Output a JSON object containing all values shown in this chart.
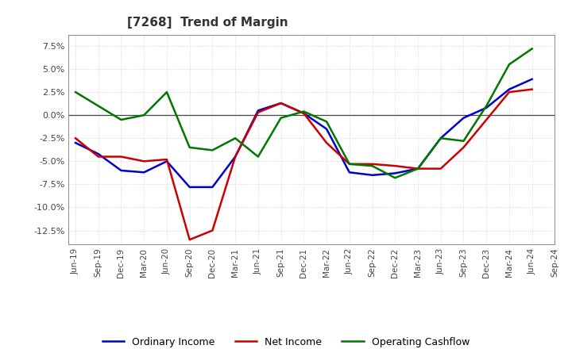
{
  "title": "[7268]  Trend of Margin",
  "x_labels": [
    "Jun-19",
    "Sep-19",
    "Dec-19",
    "Mar-20",
    "Jun-20",
    "Sep-20",
    "Dec-20",
    "Mar-21",
    "Jun-21",
    "Sep-21",
    "Dec-21",
    "Mar-22",
    "Jun-22",
    "Sep-22",
    "Dec-22",
    "Mar-23",
    "Jun-23",
    "Sep-23",
    "Dec-23",
    "Mar-24",
    "Jun-24",
    "Sep-24"
  ],
  "ordinary_income": [
    -3.0,
    -4.2,
    -6.0,
    -6.2,
    -5.0,
    -7.8,
    -7.8,
    -4.5,
    0.5,
    1.3,
    0.2,
    -1.5,
    -6.2,
    -6.5,
    -6.3,
    -5.8,
    -2.5,
    -0.3,
    0.8,
    2.8,
    3.9,
    null
  ],
  "net_income": [
    -2.5,
    -4.5,
    -4.5,
    -5.0,
    -4.8,
    -13.5,
    -12.5,
    -4.5,
    0.3,
    1.3,
    0.2,
    -3.0,
    -5.3,
    -5.3,
    -5.5,
    -5.8,
    -5.8,
    -3.5,
    -0.5,
    2.5,
    2.8,
    null
  ],
  "operating_cashflow": [
    2.5,
    1.0,
    -0.5,
    0.0,
    2.5,
    -3.5,
    -3.8,
    -2.5,
    -4.5,
    -0.3,
    0.4,
    -0.7,
    -5.3,
    -5.5,
    -6.8,
    -5.8,
    -2.5,
    -2.8,
    1.0,
    5.5,
    7.2,
    null
  ],
  "ylim": [
    -14.0,
    8.7
  ],
  "yticks": [
    -12.5,
    -10.0,
    -7.5,
    -5.0,
    -2.5,
    0.0,
    2.5,
    5.0,
    7.5
  ],
  "line_color_ordinary": "#0000CC",
  "line_color_net": "#CC0000",
  "line_color_cashflow": "#007700",
  "background_color": "#FFFFFF",
  "grid_color": "#BBBBBB",
  "legend_labels": [
    "Ordinary Income",
    "Net Income",
    "Operating Cashflow"
  ]
}
